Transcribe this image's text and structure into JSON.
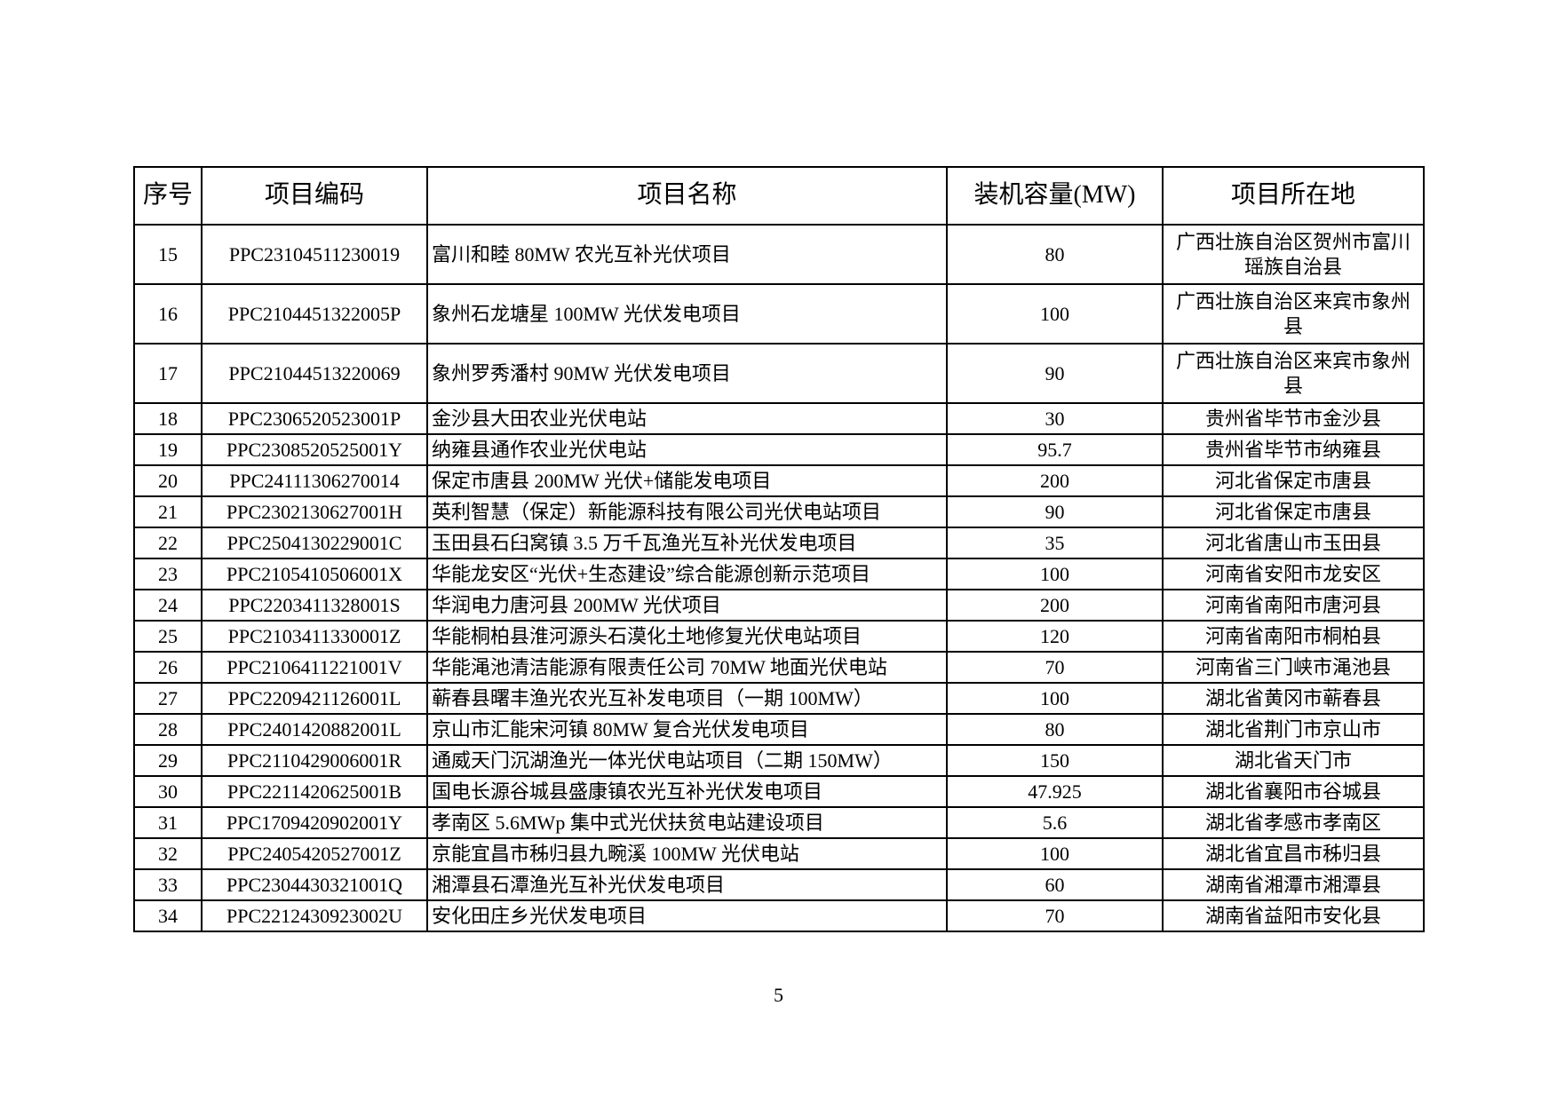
{
  "page": {
    "number": "5"
  },
  "table": {
    "headers": [
      "序号",
      "项目编码",
      "项目名称",
      "装机容量(MW)",
      "项目所在地"
    ],
    "rows": [
      {
        "no": "15",
        "code": "PPC23104511230019",
        "name": "富川和睦 80MW 农光互补光伏项目",
        "capacity": "80",
        "location": "广西壮族自治区贺州市富川瑶族自治县"
      },
      {
        "no": "16",
        "code": "PPC2104451322005P",
        "name": "象州石龙塘星 100MW 光伏发电项目",
        "capacity": "100",
        "location": "广西壮族自治区来宾市象州县"
      },
      {
        "no": "17",
        "code": "PPC21044513220069",
        "name": "象州罗秀潘村 90MW 光伏发电项目",
        "capacity": "90",
        "location": "广西壮族自治区来宾市象州县"
      },
      {
        "no": "18",
        "code": "PPC2306520523001P",
        "name": "金沙县大田农业光伏电站",
        "capacity": "30",
        "location": "贵州省毕节市金沙县"
      },
      {
        "no": "19",
        "code": "PPC2308520525001Y",
        "name": "纳雍县通作农业光伏电站",
        "capacity": "95.7",
        "location": "贵州省毕节市纳雍县"
      },
      {
        "no": "20",
        "code": "PPC24111306270014",
        "name": "保定市唐县 200MW 光伏+储能发电项目",
        "capacity": "200",
        "location": "河北省保定市唐县"
      },
      {
        "no": "21",
        "code": "PPC2302130627001H",
        "name": "英利智慧（保定）新能源科技有限公司光伏电站项目",
        "capacity": "90",
        "location": "河北省保定市唐县"
      },
      {
        "no": "22",
        "code": "PPC2504130229001C",
        "name": "玉田县石臼窝镇 3.5 万千瓦渔光互补光伏发电项目",
        "capacity": "35",
        "location": "河北省唐山市玉田县"
      },
      {
        "no": "23",
        "code": "PPC2105410506001X",
        "name": "华能龙安区“光伏+生态建设”综合能源创新示范项目",
        "capacity": "100",
        "location": "河南省安阳市龙安区"
      },
      {
        "no": "24",
        "code": "PPC2203411328001S",
        "name": "华润电力唐河县 200MW 光伏项目",
        "capacity": "200",
        "location": "河南省南阳市唐河县"
      },
      {
        "no": "25",
        "code": "PPC2103411330001Z",
        "name": "华能桐柏县淮河源头石漠化土地修复光伏电站项目",
        "capacity": "120",
        "location": "河南省南阳市桐柏县"
      },
      {
        "no": "26",
        "code": "PPC2106411221001V",
        "name": "华能渑池清洁能源有限责任公司 70MW 地面光伏电站",
        "capacity": "70",
        "location": "河南省三门峡市渑池县"
      },
      {
        "no": "27",
        "code": "PPC2209421126001L",
        "name": "蕲春县曙丰渔光农光互补发电项目（一期 100MW）",
        "capacity": "100",
        "location": "湖北省黄冈市蕲春县"
      },
      {
        "no": "28",
        "code": "PPC2401420882001L",
        "name": "京山市汇能宋河镇 80MW 复合光伏发电项目",
        "capacity": "80",
        "location": "湖北省荆门市京山市"
      },
      {
        "no": "29",
        "code": "PPC2110429006001R",
        "name": "通威天门沉湖渔光一体光伏电站项目（二期 150MW）",
        "capacity": "150",
        "location": "湖北省天门市"
      },
      {
        "no": "30",
        "code": "PPC2211420625001B",
        "name": "国电长源谷城县盛康镇农光互补光伏发电项目",
        "capacity": "47.925",
        "location": "湖北省襄阳市谷城县"
      },
      {
        "no": "31",
        "code": "PPC1709420902001Y",
        "name": "孝南区 5.6MWp 集中式光伏扶贫电站建设项目",
        "capacity": "5.6",
        "location": "湖北省孝感市孝南区"
      },
      {
        "no": "32",
        "code": "PPC2405420527001Z",
        "name": "京能宜昌市秭归县九畹溪 100MW 光伏电站",
        "capacity": "100",
        "location": "湖北省宜昌市秭归县"
      },
      {
        "no": "33",
        "code": "PPC2304430321001Q",
        "name": "湘潭县石潭渔光互补光伏发电项目",
        "capacity": "60",
        "location": "湖南省湘潭市湘潭县"
      },
      {
        "no": "34",
        "code": "PPC2212430923002U",
        "name": "安化田庄乡光伏发电项目",
        "capacity": "70",
        "location": "湖南省益阳市安化县"
      }
    ]
  }
}
